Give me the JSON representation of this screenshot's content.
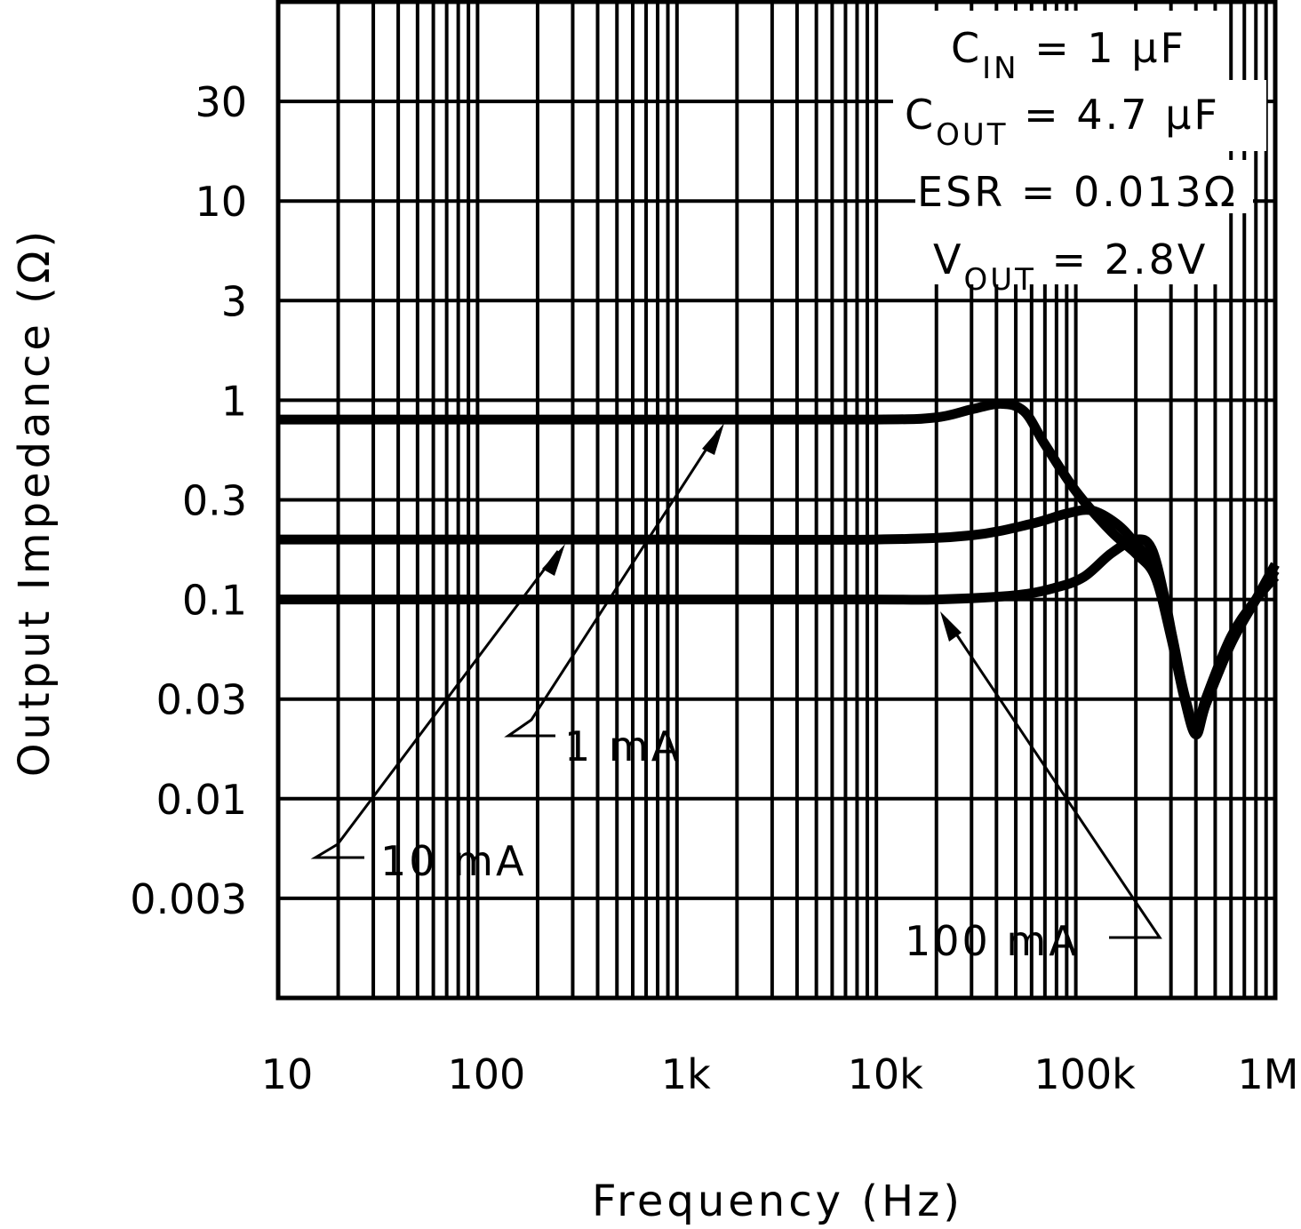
{
  "chart_data": {
    "type": "line",
    "title": "",
    "xlabel": "Frequency (Hz)",
    "ylabel": "Output Impedance (Ω)",
    "x_scale": "log",
    "y_scale": "log",
    "xlim": [
      10,
      1000000
    ],
    "ylim": [
      0.001,
      100
    ],
    "grid": true,
    "x_ticks": [
      10,
      100,
      1000,
      10000,
      100000,
      1000000
    ],
    "x_tick_labels": [
      "10",
      "100",
      "1k",
      "10k",
      "100k",
      "1M"
    ],
    "y_ticks": [
      30,
      10,
      3,
      1,
      0.3,
      0.1,
      0.03,
      0.01,
      0.003
    ],
    "y_tick_labels": [
      "30",
      "10",
      "3",
      "1",
      "0.3",
      "0.1",
      "0.03",
      "0.01",
      "0.003"
    ],
    "conditions": {
      "cin": {
        "sym": "C",
        "sub": "IN",
        "rest": " = 1 µF"
      },
      "cout": {
        "sym": "C",
        "sub": "OUT",
        "rest": " = 4.7 µF"
      },
      "esr": "ESR = 0.013Ω",
      "vout": {
        "sym": "V",
        "sub": "OUT",
        "rest": " = 2.8V"
      }
    },
    "series": [
      {
        "name": "1 mA",
        "x": [
          10,
          1000,
          10000,
          20000,
          30000,
          42000,
          55000,
          70000,
          100000,
          150000,
          200000,
          250000,
          300000,
          350000,
          400000,
          450000,
          600000,
          800000,
          1000000
        ],
        "y": [
          0.8,
          0.8,
          0.8,
          0.82,
          0.9,
          0.96,
          0.88,
          0.6,
          0.35,
          0.22,
          0.17,
          0.13,
          0.065,
          0.032,
          0.021,
          0.03,
          0.06,
          0.1,
          0.15
        ]
      },
      {
        "name": "10 mA",
        "x": [
          10,
          1000,
          10000,
          30000,
          60000,
          90000,
          120000,
          160000,
          200000,
          250000,
          300000,
          350000,
          400000,
          450000,
          600000,
          800000,
          1000000
        ],
        "y": [
          0.2,
          0.2,
          0.2,
          0.21,
          0.24,
          0.27,
          0.28,
          0.24,
          0.19,
          0.14,
          0.07,
          0.033,
          0.022,
          0.03,
          0.06,
          0.1,
          0.14
        ]
      },
      {
        "name": "100 mA",
        "x": [
          10,
          1000,
          10000,
          20000,
          50000,
          80000,
          110000,
          150000,
          200000,
          240000,
          280000,
          320000,
          360000,
          400000,
          450000,
          600000,
          800000,
          1000000
        ],
        "y": [
          0.1,
          0.1,
          0.1,
          0.1,
          0.105,
          0.115,
          0.13,
          0.17,
          0.2,
          0.18,
          0.1,
          0.05,
          0.03,
          0.022,
          0.032,
          0.065,
          0.1,
          0.13
        ]
      }
    ],
    "annotations": [
      "1 mA",
      "10 mA",
      "100 mA"
    ]
  }
}
